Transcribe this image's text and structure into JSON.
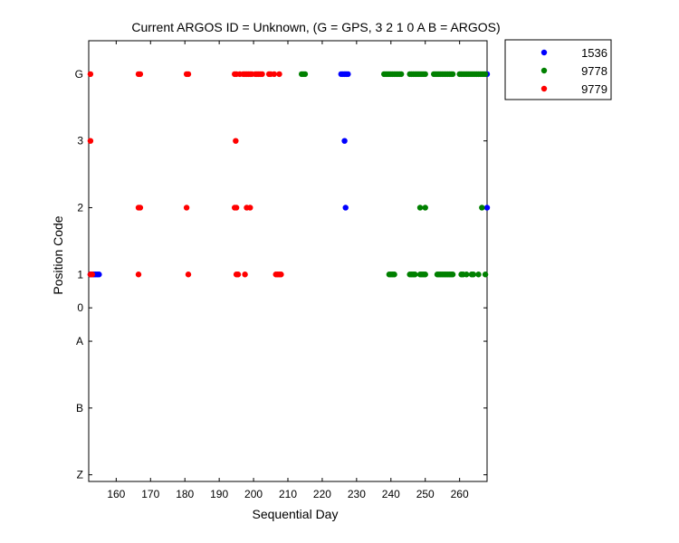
{
  "chart_data": {
    "type": "scatter",
    "title": "Current ARGOS ID = Unknown,  (G = GPS, 3 2 1 0 A B = ARGOS)",
    "xlabel": "Sequential Day",
    "ylabel": "Position Code",
    "xlim": [
      152,
      268
    ],
    "xticks": [
      160,
      170,
      180,
      190,
      200,
      210,
      220,
      230,
      240,
      250,
      260
    ],
    "yticks": [
      "G",
      "3",
      "2",
      "1",
      "0",
      "A",
      "B",
      "Z"
    ],
    "grid": false,
    "legend_position": "outside-top-right",
    "series": [
      {
        "name": "1536",
        "color": "#0000ff",
        "points": [
          {
            "x": 152.5,
            "y": "1"
          },
          {
            "x": 153,
            "y": "1"
          },
          {
            "x": 153.5,
            "y": "1"
          },
          {
            "x": 154,
            "y": "1"
          },
          {
            "x": 154.5,
            "y": "1"
          },
          {
            "x": 155,
            "y": "1"
          },
          {
            "x": 225.5,
            "y": "G"
          },
          {
            "x": 226,
            "y": "G"
          },
          {
            "x": 226.5,
            "y": "G"
          },
          {
            "x": 227,
            "y": "G"
          },
          {
            "x": 227.5,
            "y": "G"
          },
          {
            "x": 226.5,
            "y": "3"
          },
          {
            "x": 226.8,
            "y": "2"
          },
          {
            "x": 268,
            "y": "G"
          },
          {
            "x": 268,
            "y": "2"
          }
        ]
      },
      {
        "name": "9778",
        "color": "#008000",
        "points": [
          {
            "x": 214,
            "y": "G"
          },
          {
            "x": 214.5,
            "y": "G"
          },
          {
            "x": 215,
            "y": "G"
          },
          {
            "x": 238,
            "y": "G"
          },
          {
            "x": 238.5,
            "y": "G"
          },
          {
            "x": 239,
            "y": "G"
          },
          {
            "x": 239.5,
            "y": "G"
          },
          {
            "x": 240,
            "y": "G"
          },
          {
            "x": 240.5,
            "y": "G"
          },
          {
            "x": 241,
            "y": "G"
          },
          {
            "x": 241.5,
            "y": "G"
          },
          {
            "x": 242,
            "y": "G"
          },
          {
            "x": 242.5,
            "y": "G"
          },
          {
            "x": 243,
            "y": "G"
          },
          {
            "x": 245.5,
            "y": "G"
          },
          {
            "x": 246,
            "y": "G"
          },
          {
            "x": 246.5,
            "y": "G"
          },
          {
            "x": 247,
            "y": "G"
          },
          {
            "x": 247.5,
            "y": "G"
          },
          {
            "x": 248,
            "y": "G"
          },
          {
            "x": 248.5,
            "y": "G"
          },
          {
            "x": 249,
            "y": "G"
          },
          {
            "x": 249.5,
            "y": "G"
          },
          {
            "x": 250,
            "y": "G"
          },
          {
            "x": 252.5,
            "y": "G"
          },
          {
            "x": 253,
            "y": "G"
          },
          {
            "x": 253.5,
            "y": "G"
          },
          {
            "x": 254,
            "y": "G"
          },
          {
            "x": 254.5,
            "y": "G"
          },
          {
            "x": 255,
            "y": "G"
          },
          {
            "x": 255.5,
            "y": "G"
          },
          {
            "x": 256,
            "y": "G"
          },
          {
            "x": 256.5,
            "y": "G"
          },
          {
            "x": 257,
            "y": "G"
          },
          {
            "x": 257.5,
            "y": "G"
          },
          {
            "x": 258,
            "y": "G"
          },
          {
            "x": 260,
            "y": "G"
          },
          {
            "x": 260.5,
            "y": "G"
          },
          {
            "x": 261,
            "y": "G"
          },
          {
            "x": 261.5,
            "y": "G"
          },
          {
            "x": 262,
            "y": "G"
          },
          {
            "x": 262.5,
            "y": "G"
          },
          {
            "x": 263,
            "y": "G"
          },
          {
            "x": 263.5,
            "y": "G"
          },
          {
            "x": 264,
            "y": "G"
          },
          {
            "x": 264.5,
            "y": "G"
          },
          {
            "x": 265,
            "y": "G"
          },
          {
            "x": 265.5,
            "y": "G"
          },
          {
            "x": 266,
            "y": "G"
          },
          {
            "x": 266.5,
            "y": "G"
          },
          {
            "x": 267,
            "y": "G"
          },
          {
            "x": 267.5,
            "y": "G"
          },
          {
            "x": 248.5,
            "y": "2"
          },
          {
            "x": 250,
            "y": "2"
          },
          {
            "x": 266.5,
            "y": "2"
          },
          {
            "x": 239.5,
            "y": "1"
          },
          {
            "x": 240,
            "y": "1"
          },
          {
            "x": 240.5,
            "y": "1"
          },
          {
            "x": 241,
            "y": "1"
          },
          {
            "x": 245.5,
            "y": "1"
          },
          {
            "x": 246,
            "y": "1"
          },
          {
            "x": 246.5,
            "y": "1"
          },
          {
            "x": 247,
            "y": "1"
          },
          {
            "x": 248.5,
            "y": "1"
          },
          {
            "x": 249,
            "y": "1"
          },
          {
            "x": 249.5,
            "y": "1"
          },
          {
            "x": 250,
            "y": "1"
          },
          {
            "x": 253.5,
            "y": "1"
          },
          {
            "x": 254,
            "y": "1"
          },
          {
            "x": 254.5,
            "y": "1"
          },
          {
            "x": 255,
            "y": "1"
          },
          {
            "x": 255.5,
            "y": "1"
          },
          {
            "x": 256,
            "y": "1"
          },
          {
            "x": 256.5,
            "y": "1"
          },
          {
            "x": 257,
            "y": "1"
          },
          {
            "x": 257.5,
            "y": "1"
          },
          {
            "x": 258,
            "y": "1"
          },
          {
            "x": 260.5,
            "y": "1"
          },
          {
            "x": 261,
            "y": "1"
          },
          {
            "x": 262,
            "y": "1"
          },
          {
            "x": 263.5,
            "y": "1"
          },
          {
            "x": 264,
            "y": "1"
          },
          {
            "x": 265.5,
            "y": "1"
          },
          {
            "x": 267.5,
            "y": "1"
          }
        ]
      },
      {
        "name": "9779",
        "color": "#ff0000",
        "points": [
          {
            "x": 152.5,
            "y": "G"
          },
          {
            "x": 166.5,
            "y": "G"
          },
          {
            "x": 167,
            "y": "G"
          },
          {
            "x": 180.5,
            "y": "G"
          },
          {
            "x": 181,
            "y": "G"
          },
          {
            "x": 194.5,
            "y": "G"
          },
          {
            "x": 195,
            "y": "G"
          },
          {
            "x": 196,
            "y": "G"
          },
          {
            "x": 197,
            "y": "G"
          },
          {
            "x": 197.5,
            "y": "G"
          },
          {
            "x": 198,
            "y": "G"
          },
          {
            "x": 198.5,
            "y": "G"
          },
          {
            "x": 199,
            "y": "G"
          },
          {
            "x": 199.5,
            "y": "G"
          },
          {
            "x": 200.5,
            "y": "G"
          },
          {
            "x": 201,
            "y": "G"
          },
          {
            "x": 201.5,
            "y": "G"
          },
          {
            "x": 202,
            "y": "G"
          },
          {
            "x": 202.5,
            "y": "G"
          },
          {
            "x": 204.5,
            "y": "G"
          },
          {
            "x": 205,
            "y": "G"
          },
          {
            "x": 206,
            "y": "G"
          },
          {
            "x": 207.5,
            "y": "G"
          },
          {
            "x": 152.5,
            "y": "3"
          },
          {
            "x": 194.8,
            "y": "3"
          },
          {
            "x": 166.5,
            "y": "2"
          },
          {
            "x": 167,
            "y": "2"
          },
          {
            "x": 180.5,
            "y": "2"
          },
          {
            "x": 194.5,
            "y": "2"
          },
          {
            "x": 195,
            "y": "2"
          },
          {
            "x": 198,
            "y": "2"
          },
          {
            "x": 199,
            "y": "2"
          },
          {
            "x": 152.5,
            "y": "1"
          },
          {
            "x": 153,
            "y": "1"
          },
          {
            "x": 166.5,
            "y": "1"
          },
          {
            "x": 181,
            "y": "1"
          },
          {
            "x": 195,
            "y": "1"
          },
          {
            "x": 195.5,
            "y": "1"
          },
          {
            "x": 197.5,
            "y": "1"
          },
          {
            "x": 206.5,
            "y": "1"
          },
          {
            "x": 207,
            "y": "1"
          },
          {
            "x": 207.5,
            "y": "1"
          },
          {
            "x": 208,
            "y": "1"
          }
        ]
      }
    ]
  }
}
